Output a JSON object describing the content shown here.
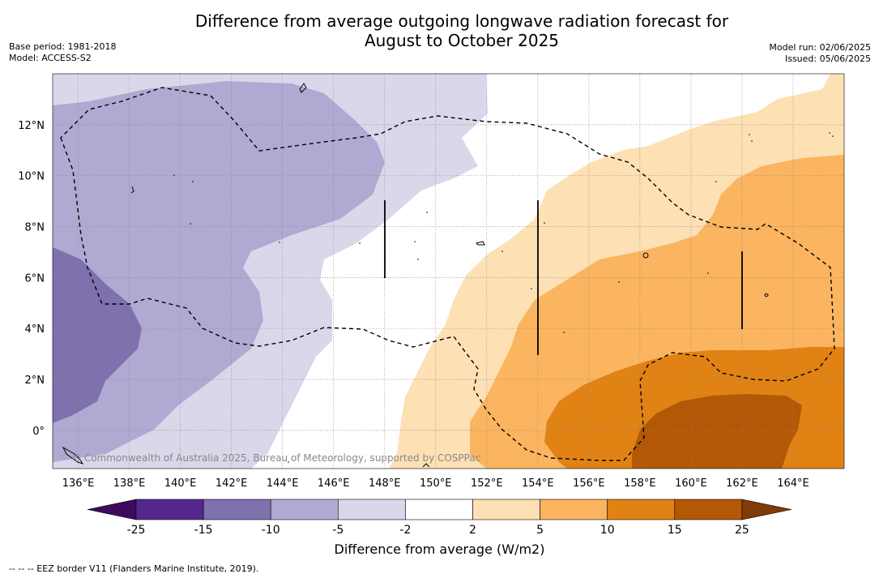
{
  "title_line1": "Difference from average outgoing longwave radiation forecast for",
  "title_line2": "August to October 2025",
  "base_period": "Base period: 1981-2018",
  "model": "Model: ACCESS-S2",
  "model_run": "Model run: 02/06/2025",
  "issued": "Issued: 05/06/2025",
  "copyright": "© Commonwealth of Australia 2025, Bureau of Meteorology, supported by COSPPac",
  "footnote": "--  --  -- EEZ border V11 (Flanders Marine Institute, 2019).",
  "map": {
    "lon_range": [
      135,
      166
    ],
    "lat_range": [
      -1.5,
      14
    ],
    "lon_ticks": [
      "136°E",
      "138°E",
      "140°E",
      "142°E",
      "144°E",
      "146°E",
      "148°E",
      "150°E",
      "152°E",
      "154°E",
      "156°E",
      "158°E",
      "160°E",
      "162°E",
      "164°E"
    ],
    "lat_ticks": [
      "12°N",
      "10°N",
      "8°N",
      "6°N",
      "4°N",
      "2°N",
      "0°"
    ]
  },
  "colorbar": {
    "label": "Difference from average (W/m2)",
    "ticks": [
      "-25",
      "-15",
      "-10",
      "-5",
      "-2",
      "2",
      "5",
      "10",
      "15",
      "25"
    ],
    "colors": {
      "below_-25": "#3f0a5c",
      "-25_-15": "#54278f",
      "-15_-10": "#7e71ad",
      "-10_-5": "#b0a9d1",
      "-5_-2": "#d8d8ea",
      "-2_2": "#ffffff",
      "2_5": "#fde0b3",
      "5_10": "#fbb45f",
      "10_15": "#e08214",
      "15_25": "#b35806",
      "above_25": "#7f3b08"
    }
  }
}
